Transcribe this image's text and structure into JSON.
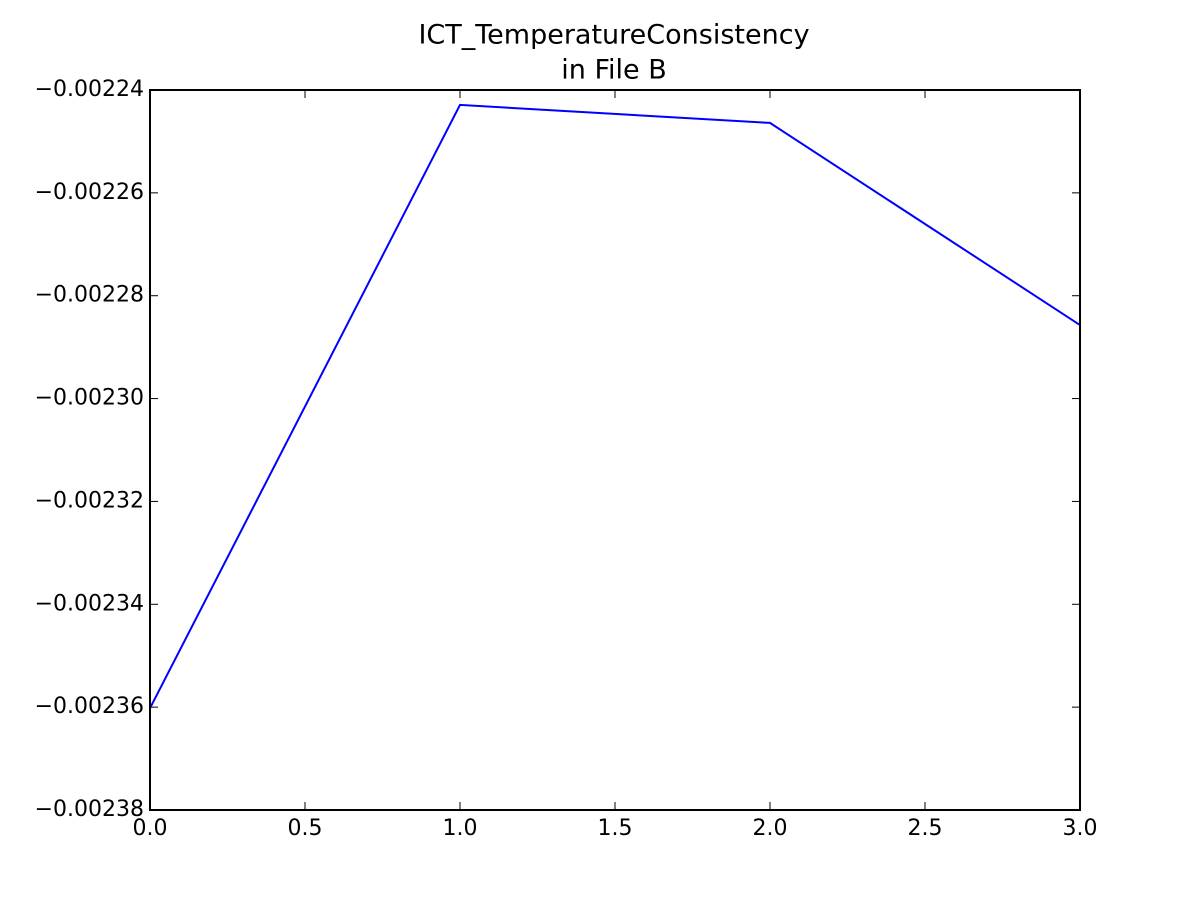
{
  "chart_data": {
    "type": "line",
    "title": "ICT_TemperatureConsistency",
    "subtitle": "in File B",
    "x": [
      0,
      1,
      2,
      3
    ],
    "series": [
      {
        "color": "#0000ff",
        "values": [
          -0.0023602,
          -0.0022429,
          -0.0022464,
          -0.0022857
        ]
      }
    ],
    "xlim": [
      0,
      3
    ],
    "xticks": [
      {
        "value": 0,
        "label": "0.0"
      },
      0.5,
      {
        "value": 1,
        "label": "1.0"
      },
      1.5,
      {
        "value": 2,
        "label": "2.0"
      },
      2.5,
      {
        "value": 3,
        "label": "3.0"
      }
    ],
    "ylim": [
      -0.00238,
      -0.00224
    ],
    "yticks": [
      {
        "value": -0.00238,
        "label": "−0.00238"
      },
      {
        "value": -0.00236,
        "label": "−0.00236"
      },
      {
        "value": -0.00234,
        "label": "−0.00234"
      },
      {
        "value": -0.00232,
        "label": "−0.00232"
      },
      {
        "value": -0.0023,
        "label": "−0.00230"
      },
      {
        "value": -0.00228,
        "label": "−0.00228"
      },
      {
        "value": -0.00226,
        "label": "−0.00226"
      },
      {
        "value": -0.00224,
        "label": "−0.00224"
      }
    ],
    "grid": false
  }
}
